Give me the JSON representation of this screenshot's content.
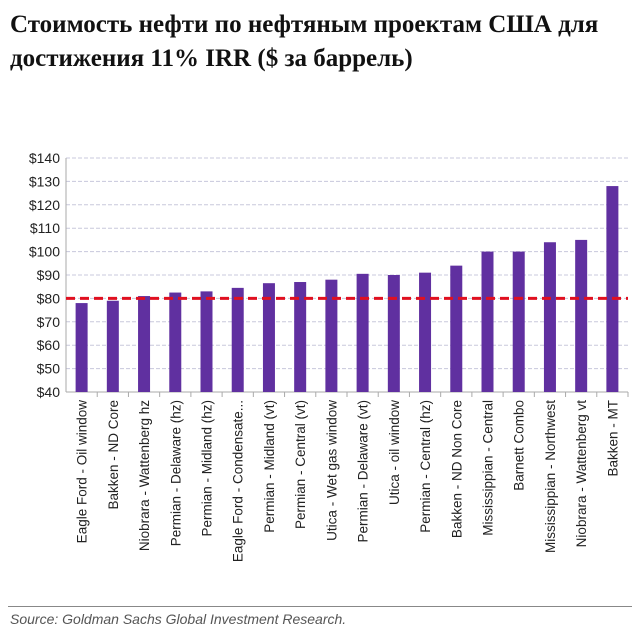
{
  "title": "Стоимость нефти по нефтяным проектам США для достижения 11% IRR ($ за баррель)",
  "source": "Source: Goldman Sachs Global Investment Research.",
  "chart_data": {
    "type": "bar",
    "title": "Стоимость нефти по нефтяным проектам США для достижения 11% IRR ($ за баррель)",
    "categories": [
      "Eagle Ford - Oil window",
      "Bakken - ND Core",
      "Niobrara - Wattenberg hz",
      "Permian - Delaware (hz)",
      "Permian - Midland (hz)",
      "Eagle Ford - Condensate...",
      "Permian - Midland (vt)",
      "Permian - Central (vt)",
      "Utica - Wet gas window",
      "Permian - Delaware (vt)",
      "Utica - oil window",
      "Permian - Central (hz)",
      "Bakken - ND Non Core",
      "Mississippian - Central",
      "Barnett Combo",
      "Mississippian - Northwest",
      "Niobrara - Wattenberg vt",
      "Bakken - MT"
    ],
    "values": [
      78,
      79,
      81,
      82.5,
      83,
      84.5,
      86.5,
      87,
      88,
      90.5,
      90,
      91,
      94,
      100,
      100,
      104,
      105,
      128
    ],
    "ylim": [
      40,
      140
    ],
    "yticks": [
      "$40",
      "$50",
      "$60",
      "$70",
      "$80",
      "$90",
      "$100",
      "$110",
      "$120",
      "$130",
      "$140"
    ],
    "reference_line": 80,
    "grid": true,
    "colors": {
      "bar": "#6030a0",
      "reference": "#e01020",
      "grid": "#c8c8dc"
    }
  }
}
